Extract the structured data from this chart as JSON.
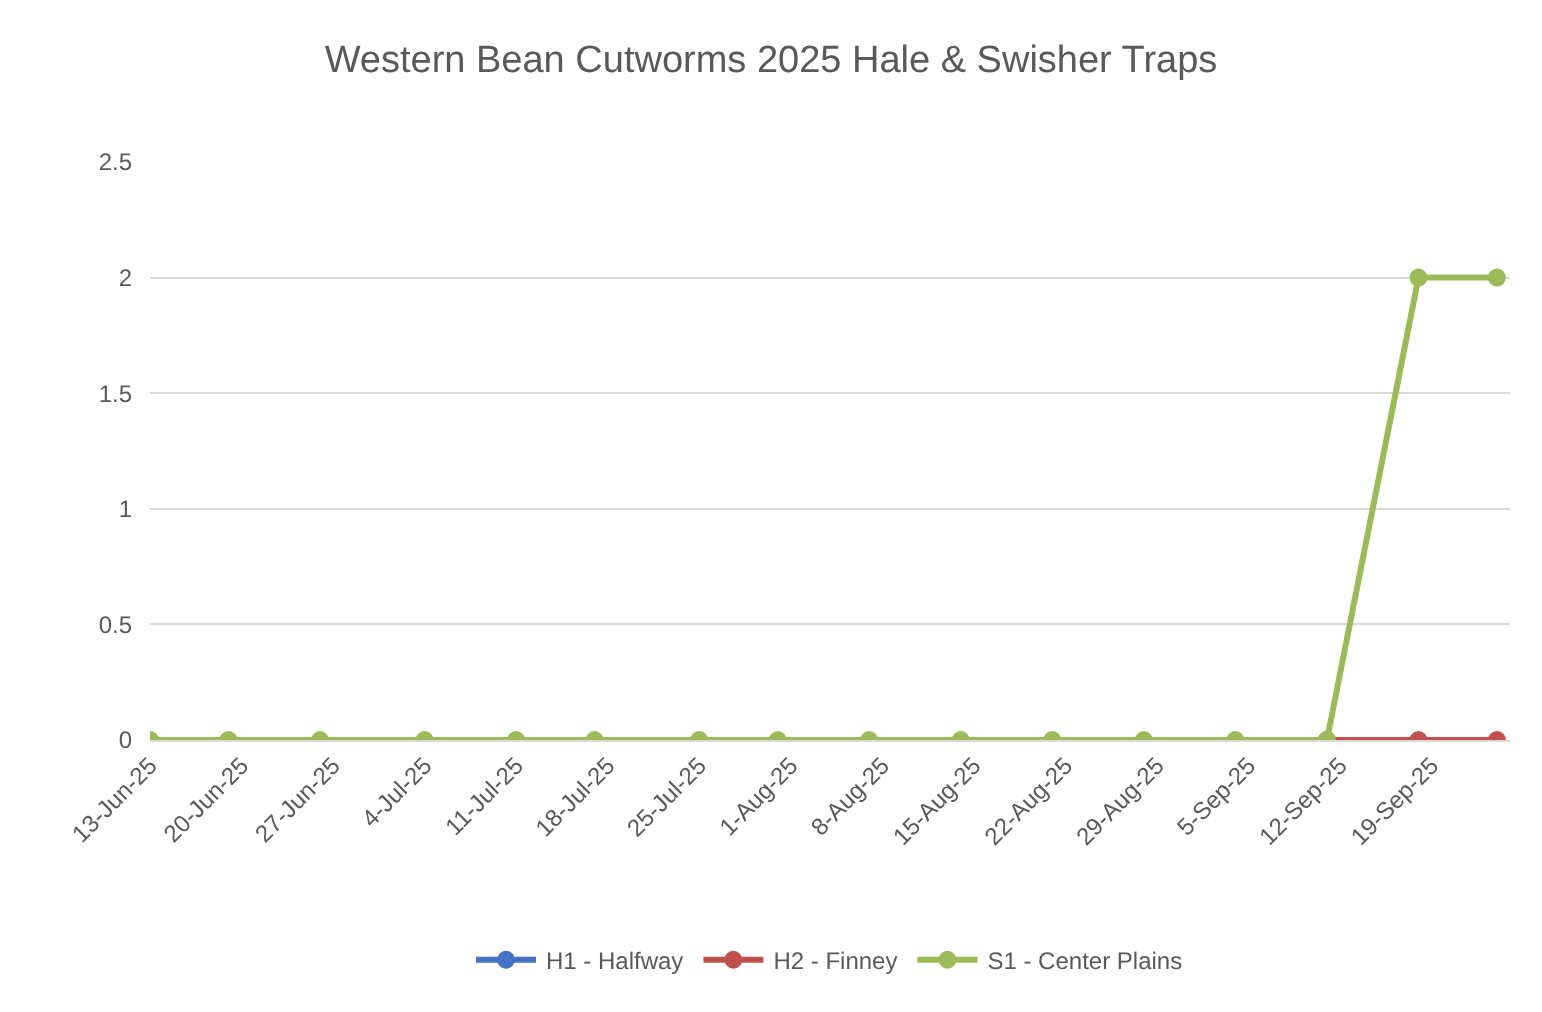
{
  "chart_data": {
    "type": "line",
    "title": "Western Bean Cutworms 2025 Hale & Swisher Traps",
    "x": [
      "2025-06-13",
      "2025-06-19",
      "2025-06-26",
      "2025-07-04",
      "2025-07-11",
      "2025-07-17",
      "2025-07-25",
      "2025-07-31",
      "2025-08-07",
      "2025-08-14",
      "2025-08-21",
      "2025-08-28",
      "2025-09-04",
      "2025-09-11",
      "2025-09-18",
      "2025-09-24"
    ],
    "series": [
      {
        "name": "H1 - Halfway",
        "color": "#4472c4",
        "values": [
          null,
          null,
          null,
          null,
          null,
          null,
          null,
          null,
          null,
          null,
          null,
          null,
          null,
          null,
          null,
          null
        ]
      },
      {
        "name": "H2 - Finney",
        "color": "#c0504d",
        "values": [
          null,
          null,
          null,
          null,
          null,
          null,
          null,
          null,
          null,
          null,
          null,
          null,
          null,
          0,
          0,
          0
        ]
      },
      {
        "name": "S1 - Center Plains",
        "color": "#9bbb59",
        "values": [
          0,
          0,
          0,
          0,
          0,
          0,
          0,
          0,
          0,
          0,
          0,
          0,
          0,
          0,
          2,
          2
        ]
      }
    ],
    "xlim": [
      "2025-06-13",
      "2025-09-25"
    ],
    "xticks": [
      {
        "value": "2025-06-13",
        "label": "13-Jun-25"
      },
      {
        "value": "2025-06-20",
        "label": "20-Jun-25"
      },
      {
        "value": "2025-06-27",
        "label": "27-Jun-25"
      },
      {
        "value": "2025-07-04",
        "label": "4-Jul-25"
      },
      {
        "value": "2025-07-11",
        "label": "11-Jul-25"
      },
      {
        "value": "2025-07-18",
        "label": "18-Jul-25"
      },
      {
        "value": "2025-07-25",
        "label": "25-Jul-25"
      },
      {
        "value": "2025-08-01",
        "label": "1-Aug-25"
      },
      {
        "value": "2025-08-08",
        "label": "8-Aug-25"
      },
      {
        "value": "2025-08-15",
        "label": "15-Aug-25"
      },
      {
        "value": "2025-08-22",
        "label": "22-Aug-25"
      },
      {
        "value": "2025-08-29",
        "label": "29-Aug-25"
      },
      {
        "value": "2025-09-05",
        "label": "5-Sep-25"
      },
      {
        "value": "2025-09-12",
        "label": "12-Sep-25"
      },
      {
        "value": "2025-09-19",
        "label": "19-Sep-25"
      }
    ],
    "ylim": [
      0,
      2.5
    ],
    "yticks": [
      0,
      0.5,
      1,
      1.5,
      2,
      2.5
    ],
    "grid": "y",
    "legend": "bottom",
    "marker": "circle",
    "line_style": "solid"
  }
}
